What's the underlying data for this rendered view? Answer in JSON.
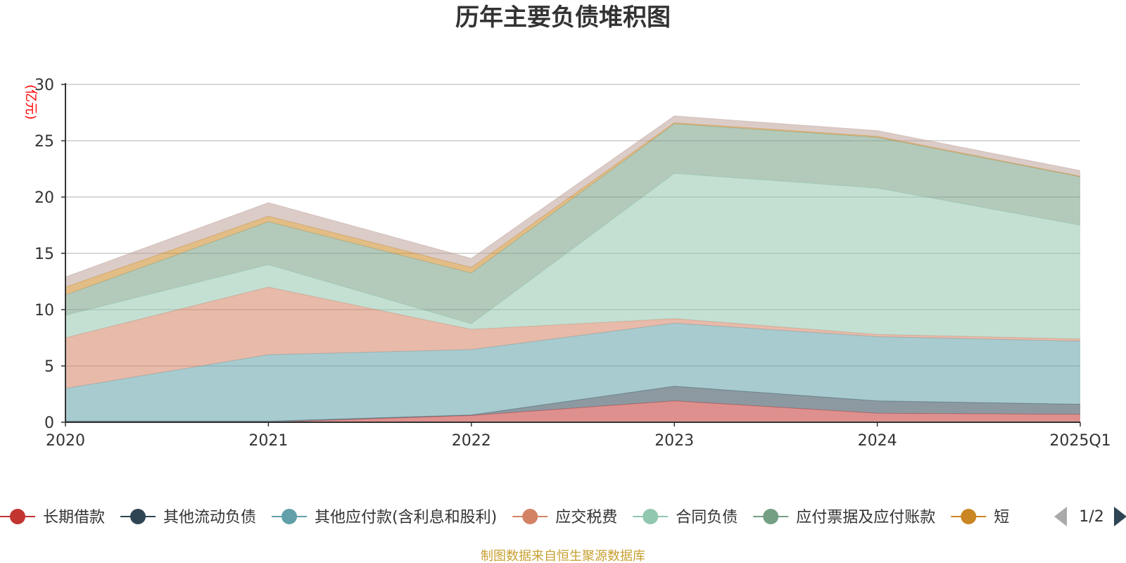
{
  "chart_data": {
    "type": "area",
    "stacked": true,
    "title": "历年主要负债堆积图",
    "unit_label": "(亿元)",
    "x": [
      "2020",
      "2021",
      "2022",
      "2023",
      "2024",
      "2025Q1"
    ],
    "ylim": [
      0,
      30
    ],
    "yticks": [
      "0",
      "5",
      "10",
      "15",
      "20",
      "25",
      "30"
    ],
    "grid": true,
    "legend_position": "bottom",
    "series": [
      {
        "name": "长期借款",
        "color": "#c23531",
        "values": [
          0,
          0,
          0.6,
          1.9,
          0.8,
          0.7
        ]
      },
      {
        "name": "其他流动负债",
        "color": "#2f4554",
        "values": [
          0.1,
          0.1,
          0.05,
          1.3,
          1.1,
          0.9
        ]
      },
      {
        "name": "其他应付款(含利息和股利)",
        "color": "#61a0a8",
        "values": [
          2.9,
          5.9,
          5.8,
          5.6,
          5.7,
          5.6
        ]
      },
      {
        "name": "应交税费",
        "color": "#d48265",
        "values": [
          4.5,
          6.0,
          1.8,
          0.4,
          0.2,
          0.2
        ]
      },
      {
        "name": "合同负债",
        "color": "#91c7ae",
        "values": [
          2.0,
          2.0,
          0.5,
          12.9,
          13.0,
          10.1
        ]
      },
      {
        "name": "应付票据及应付账款",
        "color": "#749f83",
        "values": [
          1.8,
          3.8,
          4.5,
          4.4,
          4.5,
          4.3
        ]
      },
      {
        "name": "短期借款",
        "color": "#ca8622",
        "values": [
          0.7,
          0.5,
          0.5,
          0.1,
          0.1,
          0.05
        ]
      },
      {
        "name": "",
        "color": "#bda29a",
        "values": [
          0.9,
          1.2,
          0.8,
          0.6,
          0.5,
          0.5
        ]
      }
    ]
  },
  "legend": {
    "items": [
      {
        "label": "长期借款",
        "color": "#c23531"
      },
      {
        "label": "其他流动负债",
        "color": "#2f4554"
      },
      {
        "label": "其他应付款(含利息和股利)",
        "color": "#61a0a8"
      },
      {
        "label": "应交税费",
        "color": "#d48265"
      },
      {
        "label": "合同负债",
        "color": "#91c7ae"
      },
      {
        "label": "应付票据及应付账款",
        "color": "#749f83"
      },
      {
        "label": "短",
        "color": "#ca8622"
      }
    ],
    "page_indicator": "1/2"
  },
  "source_note": "制图数据来自恒生聚源数据库"
}
